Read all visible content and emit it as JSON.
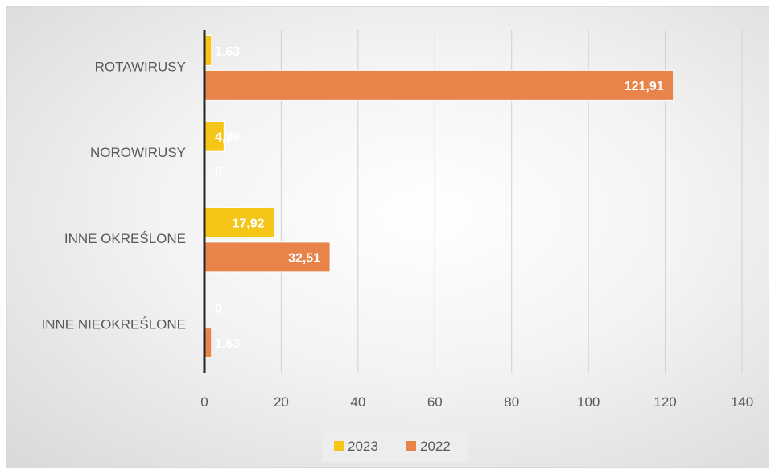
{
  "chart_data": {
    "type": "bar",
    "orientation": "horizontal",
    "categories": [
      "ROTAWIRUSY",
      "NOROWIRUSY",
      "INNE OKREŚLONE",
      "INNE NIEOKREŚLONE"
    ],
    "series": [
      {
        "name": "2023",
        "color": "#f5c518",
        "values": [
          1.63,
          4.89,
          17.92,
          0
        ],
        "labels": [
          "1,63",
          "4,89",
          "17,92",
          "0"
        ]
      },
      {
        "name": "2022",
        "color": "#e8834a",
        "values": [
          121.91,
          0,
          32.51,
          1.63
        ],
        "labels": [
          "121,91",
          "0",
          "32,51",
          "1,63"
        ]
      }
    ],
    "xlim": [
      0,
      140
    ],
    "xticks": [
      0,
      20,
      40,
      60,
      80,
      100,
      120,
      140
    ],
    "xtick_labels": [
      "0",
      "20",
      "40",
      "60",
      "80",
      "100",
      "120",
      "140"
    ],
    "grid": true,
    "legend": "bottom"
  }
}
